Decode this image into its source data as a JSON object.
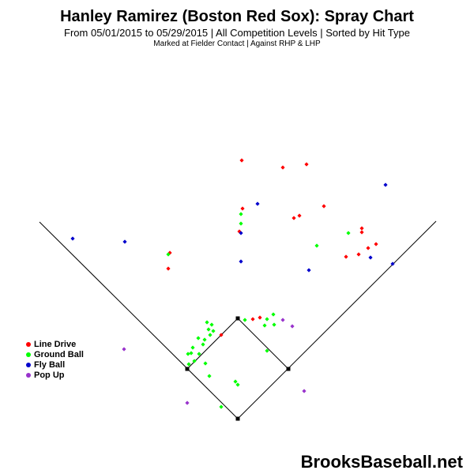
{
  "header": {
    "title": "Hanley Ramirez (Boston Red Sox): Spray Chart",
    "subtitle": "From 05/01/2015 to 05/29/2015 | All Competition Levels | Sorted by Hit Type",
    "subtitle2": "Marked at Fielder Contact |   Against RHP & LHP"
  },
  "legend": [
    {
      "label": "Line Drive",
      "color": "#ff0000"
    },
    {
      "label": "Ground Ball",
      "color": "#00ff00"
    },
    {
      "label": "Fly Ball",
      "color": "#0000cc"
    },
    {
      "label": "Pop Up",
      "color": "#9933cc"
    }
  ],
  "watermark": "BrooksBaseball.net",
  "chart_data": {
    "type": "scatter",
    "title": "Hanley Ramirez (Boston Red Sox): Spray Chart",
    "grid": false,
    "legend_position": "left",
    "series": [
      {
        "name": "Line Drive",
        "color": "#ff0000",
        "points": [
          [
            306,
            203
          ],
          [
            358,
            212
          ],
          [
            388,
            208
          ],
          [
            307,
            264
          ],
          [
            303,
            293
          ],
          [
            410,
            261
          ],
          [
            372,
            276
          ],
          [
            379,
            273
          ],
          [
            458,
            289
          ],
          [
            458,
            294
          ],
          [
            476,
            309
          ],
          [
            466,
            314
          ],
          [
            454,
            322
          ],
          [
            438,
            325
          ],
          [
            215,
            320
          ],
          [
            213,
            340
          ],
          [
            320,
            404
          ],
          [
            329,
            402
          ],
          [
            280,
            424
          ]
        ]
      },
      {
        "name": "Ground Ball",
        "color": "#00ff00",
        "points": [
          [
            305,
            271
          ],
          [
            305,
            283
          ],
          [
            441,
            295
          ],
          [
            401,
            311
          ],
          [
            213,
            322
          ],
          [
            310,
            405
          ],
          [
            338,
            404
          ],
          [
            346,
            398
          ],
          [
            335,
            412
          ],
          [
            347,
            411
          ],
          [
            262,
            408
          ],
          [
            268,
            411
          ],
          [
            264,
            417
          ],
          [
            270,
            419
          ],
          [
            259,
            430
          ],
          [
            266,
            424
          ],
          [
            251,
            428
          ],
          [
            257,
            436
          ],
          [
            244,
            440
          ],
          [
            242,
            447
          ],
          [
            238,
            448
          ],
          [
            252,
            448
          ],
          [
            239,
            461
          ],
          [
            246,
            457
          ],
          [
            260,
            460
          ],
          [
            338,
            444
          ],
          [
            265,
            476
          ],
          [
            298,
            483
          ],
          [
            301,
            487
          ],
          [
            280,
            515
          ]
        ]
      },
      {
        "name": "Fly Ball",
        "color": "#0000cc",
        "points": [
          [
            488,
            234
          ],
          [
            326,
            258
          ],
          [
            305,
            295
          ],
          [
            92,
            302
          ],
          [
            158,
            306
          ],
          [
            469,
            326
          ],
          [
            305,
            331
          ],
          [
            391,
            342
          ],
          [
            497,
            334
          ]
        ]
      },
      {
        "name": "Pop Up",
        "color": "#9933cc",
        "points": [
          [
            358,
            405
          ],
          [
            370,
            413
          ],
          [
            157,
            442
          ],
          [
            385,
            495
          ],
          [
            237,
            510
          ]
        ]
      }
    ]
  }
}
